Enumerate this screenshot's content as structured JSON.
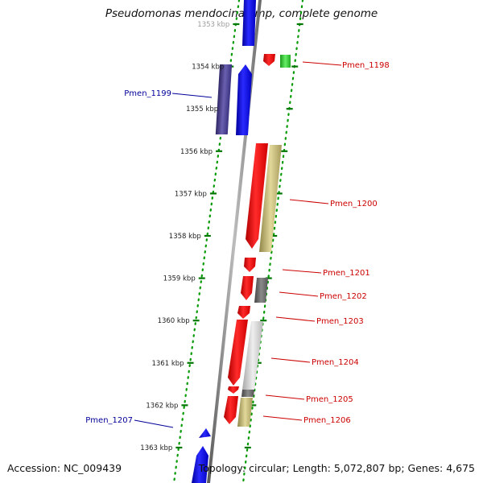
{
  "title": "Pseudomonas mendocina ymp, complete genome",
  "accession": "Accession: NC_009439",
  "summary": "Topology: circular; Length: 5,072,807 bp; Genes: 4,675",
  "colors": {
    "forward": "#0000ee",
    "reverse": "#ff0000",
    "forward_label": "#000099",
    "reverse_label": "#cc0000",
    "cog_green": "#33cc33",
    "cog_purple": "#4a3f8c",
    "cog_khaki": "#b8ad6b",
    "cog_gray": "#666666",
    "cog_light": "#cccccc",
    "tick": "#007700"
  },
  "ticks": [
    "1353 kbp",
    "1354 kbp",
    "1355 kbp",
    "1356 kbp",
    "1357 kbp",
    "1358 kbp",
    "1359 kbp",
    "1360 kbp",
    "1361 kbp",
    "1362 kbp",
    "1363 kbp"
  ],
  "gene_labels": [
    {
      "name": "Pmen_1198",
      "strand": "reverse"
    },
    {
      "name": "Pmen_1199",
      "strand": "forward"
    },
    {
      "name": "Pmen_1200",
      "strand": "reverse"
    },
    {
      "name": "Pmen_1201",
      "strand": "reverse"
    },
    {
      "name": "Pmen_1202",
      "strand": "reverse"
    },
    {
      "name": "Pmen_1203",
      "strand": "reverse"
    },
    {
      "name": "Pmen_1204",
      "strand": "reverse"
    },
    {
      "name": "Pmen_1205",
      "strand": "reverse"
    },
    {
      "name": "Pmen_1206",
      "strand": "reverse"
    },
    {
      "name": "Pmen_1207",
      "strand": "forward"
    }
  ]
}
